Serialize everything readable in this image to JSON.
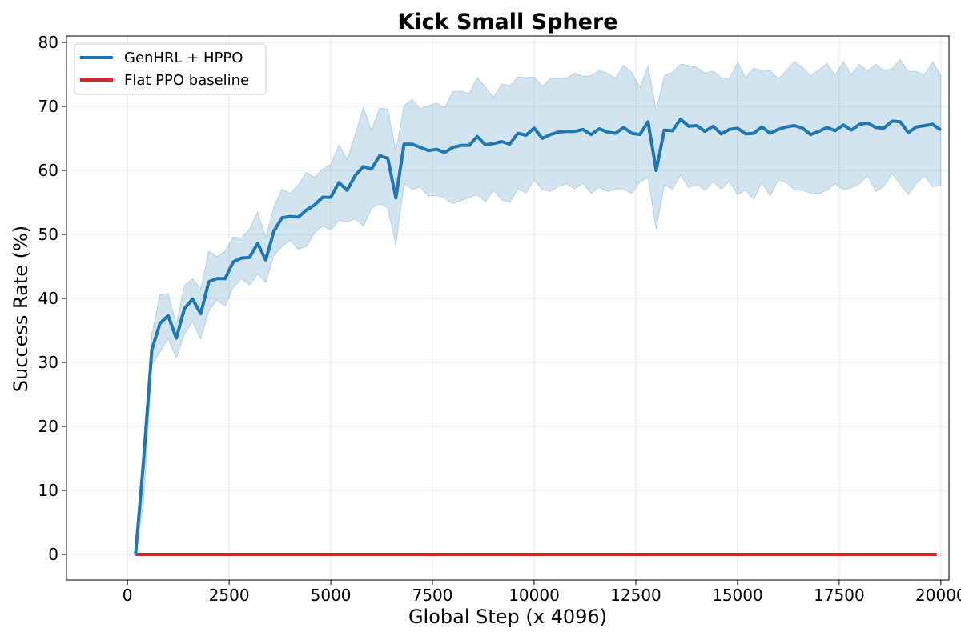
{
  "chart_data": {
    "type": "line",
    "title": "Kick Small Sphere",
    "xlabel": "Global Step (x 4096)",
    "ylabel": "Success Rate (%)",
    "xlim": [
      -1500,
      20200
    ],
    "ylim": [
      -4,
      81
    ],
    "xticks": [
      0,
      2500,
      5000,
      7500,
      10000,
      12500,
      15000,
      17500,
      20000
    ],
    "yticks": [
      0,
      10,
      20,
      30,
      40,
      50,
      60,
      70,
      80
    ],
    "grid": true,
    "legend_position": "top-left",
    "colors": {
      "genhrl_line": "#1f77b4",
      "genhrl_band": "#1f77b4",
      "baseline_line": "#d62728",
      "grid": "#e6e6e6",
      "axes": "#000000"
    },
    "series": [
      {
        "name": "GenHRL + HPPO",
        "x": [
          200,
          400,
          600,
          800,
          1000,
          1200,
          1400,
          1600,
          1800,
          2000,
          2200,
          2400,
          2600,
          2800,
          3000,
          3200,
          3400,
          3600,
          3800,
          4000,
          4200,
          4400,
          4600,
          4800,
          5000,
          5200,
          5400,
          5600,
          5800,
          6000,
          6200,
          6400,
          6600,
          6800,
          7000,
          7200,
          7400,
          7600,
          7800,
          8000,
          8200,
          8400,
          8600,
          8800,
          9000,
          9200,
          9400,
          9600,
          9800,
          10000,
          10200,
          10400,
          10600,
          10800,
          11000,
          11200,
          11400,
          11600,
          11800,
          12000,
          12200,
          12400,
          12600,
          12800,
          13000,
          13200,
          13400,
          13600,
          13800,
          14000,
          14200,
          14400,
          14600,
          14800,
          15000,
          15200,
          15400,
          15600,
          15800,
          16000,
          16200,
          16400,
          16600,
          16800,
          17000,
          17200,
          17400,
          17600,
          17800,
          18000,
          18200,
          18400,
          18600,
          18800,
          19000,
          19200,
          19400,
          19600,
          19800,
          20000
        ],
        "y": [
          0,
          15,
          32,
          36.1,
          37.3,
          33.8,
          38.4,
          39.9,
          37.6,
          42.6,
          43.1,
          43.1,
          45.7,
          46.3,
          46.4,
          48.6,
          46,
          50.5,
          52.6,
          52.8,
          52.7,
          53.8,
          54.6,
          55.8,
          55.8,
          58.1,
          56.9,
          59.2,
          60.6,
          60.2,
          62.3,
          61.9,
          55.7,
          64.1,
          64.1,
          63.6,
          63.1,
          63.3,
          62.8,
          63.6,
          63.9,
          63.9,
          65.3,
          64,
          64.2,
          64.5,
          64.1,
          65.8,
          65.5,
          66.6,
          65,
          65.6,
          66,
          66.1,
          66.1,
          66.4,
          65.6,
          66.5,
          66,
          65.8,
          66.7,
          65.8,
          65.6,
          67.6,
          60,
          66.3,
          66.2,
          68,
          66.9,
          67,
          66.1,
          66.9,
          65.7,
          66.4,
          66.6,
          65.7,
          65.8,
          66.8,
          65.8,
          66.4,
          66.8,
          67,
          66.6,
          65.6,
          66.1,
          66.7,
          66.2,
          67.1,
          66.3,
          67.2,
          67.4,
          66.7,
          66.6,
          67.7,
          67.6,
          65.9,
          66.8,
          67,
          67.2,
          66.3
        ],
        "upper": [
          0,
          18,
          34.4,
          40.6,
          40.8,
          35.9,
          42,
          43.1,
          41.5,
          47.4,
          46.5,
          47.4,
          49.6,
          49.4,
          50.8,
          53.5,
          49.5,
          54.3,
          57.1,
          56.4,
          57.7,
          59.7,
          58.9,
          60.2,
          60.9,
          64,
          61.7,
          65.6,
          69.8,
          66.3,
          69.7,
          69.6,
          63,
          70.1,
          71.1,
          69.6,
          70.1,
          70.5,
          69.8,
          72.3,
          72.4,
          72,
          74.5,
          73,
          71.4,
          73.5,
          73.2,
          74.6,
          74.5,
          74.6,
          73.1,
          74.4,
          74.4,
          74.4,
          75.2,
          74.7,
          74.8,
          75.6,
          75.2,
          74.4,
          76.4,
          75.3,
          73,
          76.3,
          69.4,
          74.8,
          75.3,
          76.6,
          76.4,
          76.1,
          75.2,
          75.5,
          74.5,
          74.3,
          76.9,
          74.5,
          76,
          75.5,
          75.6,
          74.3,
          75.6,
          77,
          76.1,
          74.8,
          75.7,
          76.7,
          74.8,
          77,
          75,
          76.6,
          75.5,
          76.6,
          75.6,
          75.9,
          77.3,
          75.5,
          75.4,
          74.9,
          77,
          74.8
        ],
        "lower": [
          0,
          8.3,
          29.6,
          31.6,
          33.7,
          30.7,
          34.4,
          36.4,
          33.6,
          38,
          39.7,
          38.8,
          41.7,
          43.1,
          42.1,
          43.8,
          42.5,
          46.7,
          48.1,
          49.1,
          47.7,
          48.1,
          50.3,
          51.3,
          50.7,
          52.2,
          51.9,
          52.4,
          51.3,
          54.1,
          54.8,
          54.1,
          48.3,
          58,
          57,
          57.4,
          56,
          56.1,
          55.7,
          54.8,
          55.3,
          55.7,
          56.2,
          55.1,
          56.9,
          55.4,
          55,
          57.1,
          56.5,
          58.5,
          57,
          56.7,
          57.5,
          57.9,
          57.1,
          58,
          56.4,
          57.4,
          56.7,
          57.1,
          57.1,
          56.4,
          58.2,
          58.9,
          50.8,
          57.7,
          57.1,
          59.3,
          57.3,
          57.8,
          56.9,
          58.2,
          57.1,
          58.3,
          56.2,
          56.9,
          55.5,
          58.1,
          56,
          58.5,
          58.1,
          56.9,
          56.9,
          56.4,
          56.4,
          56.9,
          57.9,
          57,
          57.3,
          57.9,
          59.2,
          56.7,
          57.5,
          59.5,
          57.8,
          56.2,
          58,
          59.2,
          57.4,
          57.6
        ]
      },
      {
        "name": "Flat PPO baseline",
        "x": [
          200,
          19900
        ],
        "y": [
          0,
          0
        ]
      }
    ]
  }
}
